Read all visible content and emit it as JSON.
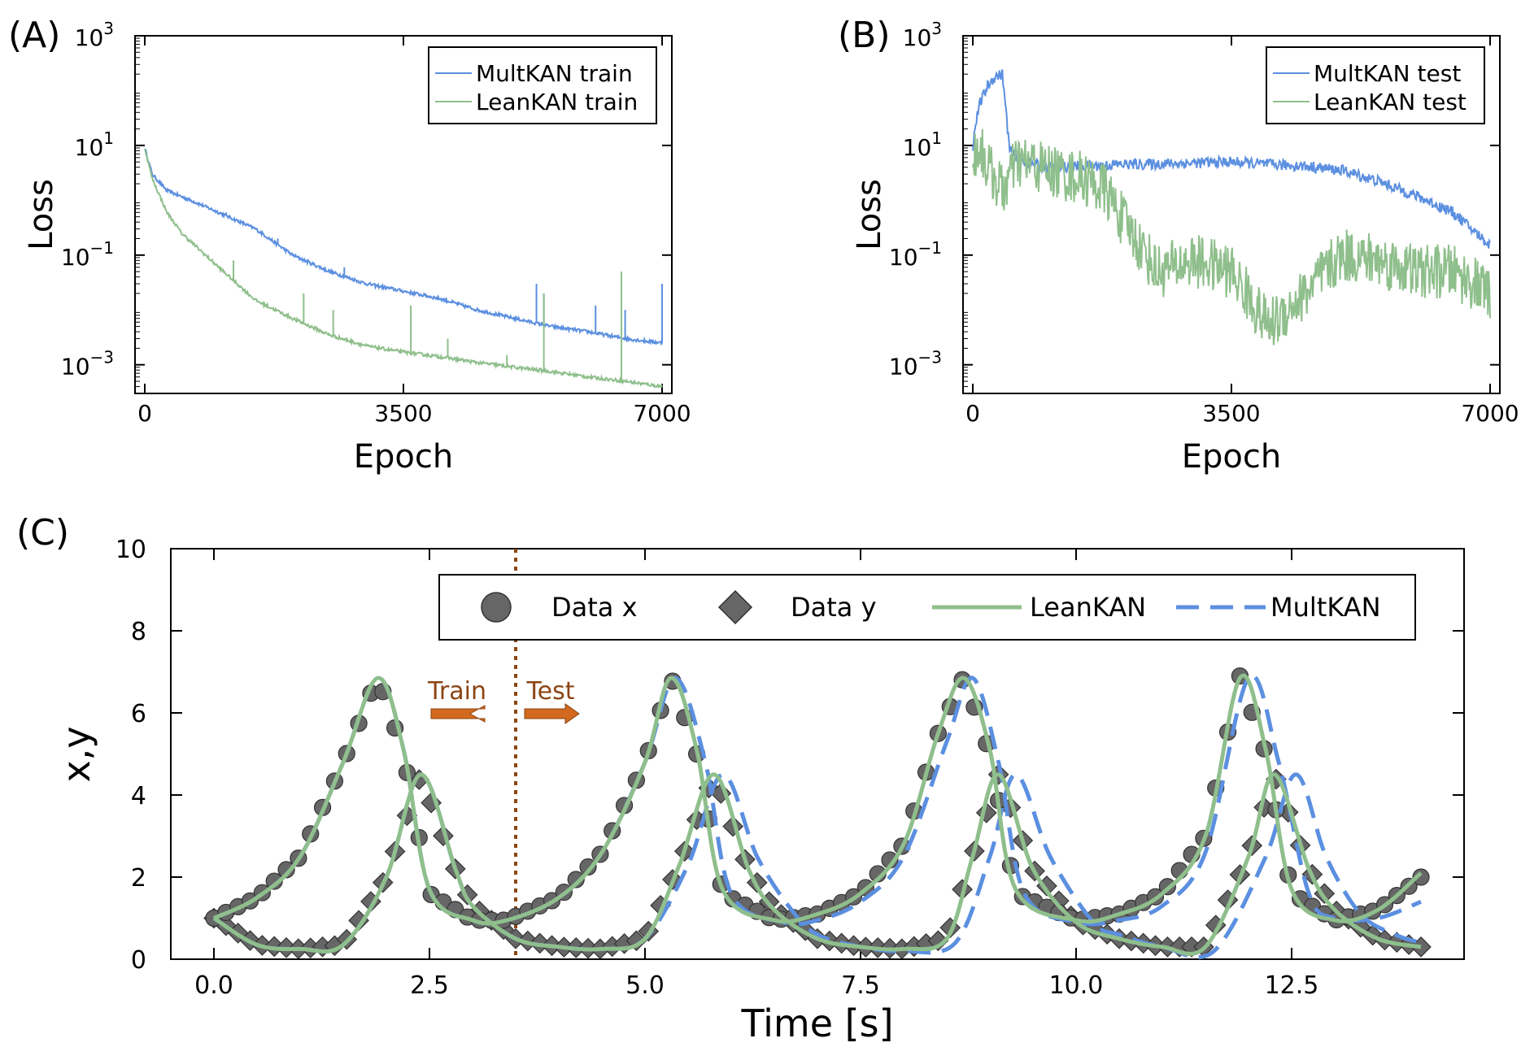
{
  "colors": {
    "multkan": "#5b8fe0",
    "leankan": "#8fbf8c",
    "data": "#666666",
    "split": "#8b4513",
    "arrow": "#d2691e",
    "arrow_text": "#8b4513"
  },
  "panels": {
    "A": {
      "label": "(A)",
      "xlabel": "Epoch",
      "ylabel": "Loss"
    },
    "B": {
      "label": "(B)",
      "xlabel": "Epoch",
      "ylabel": "Loss"
    },
    "C": {
      "label": "(C)",
      "xlabel": "Time [s]",
      "ylabel": "x,y",
      "train_label": "Train",
      "test_label": "Test"
    }
  },
  "chart_data": [
    {
      "type": "line",
      "panel": "A",
      "title": "",
      "xlabel": "Epoch",
      "ylabel": "Loss",
      "yscale": "log",
      "xlim": [
        0,
        7000
      ],
      "ylim": [
        0.0003,
        1000
      ],
      "x_ticks": [
        {
          "value": 0,
          "label": "0"
        },
        {
          "value": 3500,
          "label": "3500"
        },
        {
          "value": 7000,
          "label": "7000"
        }
      ],
      "y_ticks": [
        {
          "exp": -3,
          "label": "10",
          "sup": "−3"
        },
        {
          "exp": -1,
          "label": "10",
          "sup": "−1"
        },
        {
          "exp": 1,
          "label": "10",
          "sup": "1"
        },
        {
          "exp": 3,
          "label": "10",
          "sup": "3"
        }
      ],
      "legend": "top-right",
      "series": [
        {
          "name": "MultKAN train",
          "key": "multkan",
          "x": [
            0,
            100,
            300,
            700,
            1000,
            1500,
            2000,
            2500,
            3000,
            3500,
            4000,
            4500,
            5000,
            5500,
            6000,
            6500,
            7000
          ],
          "y": [
            9,
            3.0,
            1.5,
            0.9,
            0.6,
            0.3,
            0.1,
            0.05,
            0.03,
            0.022,
            0.016,
            0.01,
            0.007,
            0.005,
            0.004,
            0.003,
            0.0025
          ],
          "spikes": [
            {
              "x": 1100,
              "y": 0.6
            },
            {
              "x": 1800,
              "y": 0.2
            },
            {
              "x": 2700,
              "y": 0.06
            },
            {
              "x": 3800,
              "y": 0.02
            },
            {
              "x": 4400,
              "y": 0.012
            },
            {
              "x": 5300,
              "y": 0.03
            },
            {
              "x": 5400,
              "y": 0.02
            },
            {
              "x": 6100,
              "y": 0.012
            },
            {
              "x": 6500,
              "y": 0.01
            },
            {
              "x": 7000,
              "y": 0.03
            }
          ]
        },
        {
          "name": "LeanKAN train",
          "key": "leankan",
          "x": [
            0,
            100,
            300,
            500,
            1000,
            1500,
            2000,
            2500,
            3000,
            3500,
            4000,
            4500,
            5000,
            5500,
            6000,
            6500,
            7000
          ],
          "y": [
            9,
            2.5,
            0.6,
            0.25,
            0.06,
            0.015,
            0.007,
            0.0035,
            0.0022,
            0.0017,
            0.0014,
            0.0011,
            0.0009,
            0.00075,
            0.0006,
            0.0005,
            0.0004
          ],
          "spikes": [
            {
              "x": 1200,
              "y": 0.08
            },
            {
              "x": 2150,
              "y": 0.02
            },
            {
              "x": 2550,
              "y": 0.01
            },
            {
              "x": 3600,
              "y": 0.012
            },
            {
              "x": 4100,
              "y": 0.003
            },
            {
              "x": 4900,
              "y": 0.0015
            },
            {
              "x": 5400,
              "y": 0.02
            },
            {
              "x": 6450,
              "y": 0.05
            }
          ]
        }
      ]
    },
    {
      "type": "line",
      "panel": "B",
      "title": "",
      "xlabel": "Epoch",
      "ylabel": "Loss",
      "yscale": "log",
      "xlim": [
        0,
        7000
      ],
      "ylim": [
        0.0003,
        1000
      ],
      "x_ticks": [
        {
          "value": 0,
          "label": "0"
        },
        {
          "value": 3500,
          "label": "3500"
        },
        {
          "value": 7000,
          "label": "7000"
        }
      ],
      "y_ticks": [
        {
          "exp": -3,
          "label": "10",
          "sup": "−3"
        },
        {
          "exp": -1,
          "label": "10",
          "sup": "−1"
        },
        {
          "exp": 1,
          "label": "10",
          "sup": "1"
        },
        {
          "exp": 3,
          "label": "10",
          "sup": "3"
        }
      ],
      "legend": "top-right",
      "series": [
        {
          "name": "MultKAN test",
          "key": "multkan",
          "x": [
            0,
            50,
            100,
            200,
            300,
            400,
            500,
            700,
            1000,
            1500,
            2000,
            2500,
            3000,
            3500,
            4000,
            4500,
            5000,
            5500,
            6000,
            6500,
            7000
          ],
          "y": [
            10,
            30,
            60,
            120,
            180,
            200,
            8,
            5,
            4,
            4.2,
            4.5,
            4.6,
            4.8,
            5,
            4.5,
            4.2,
            3.5,
            2.2,
            1.2,
            0.6,
            0.15
          ],
          "noise": 0.2
        },
        {
          "name": "LeanKAN test",
          "key": "leankan",
          "x": [
            0,
            100,
            200,
            300,
            400,
            600,
            800,
            1200,
            1500,
            1800,
            2000,
            2200,
            2500,
            3000,
            3500,
            4000,
            4500,
            5000,
            5500,
            6000,
            6500,
            7000
          ],
          "y": [
            6,
            10,
            4,
            2.5,
            1.5,
            5,
            4.5,
            3,
            2.5,
            1.5,
            0.5,
            0.2,
            0.05,
            0.08,
            0.05,
            0.005,
            0.02,
            0.1,
            0.08,
            0.05,
            0.05,
            0.02
          ],
          "noise": 1.0
        }
      ]
    },
    {
      "type": "line+scatter",
      "panel": "C",
      "title": "",
      "xlabel": "Time [s]",
      "ylabel": "x,y",
      "xlim": [
        -0.5,
        14.5
      ],
      "ylim": [
        0,
        10
      ],
      "x_ticks": [
        {
          "value": 0,
          "label": "0.0"
        },
        {
          "value": 2.5,
          "label": "2.5"
        },
        {
          "value": 5,
          "label": "5.0"
        },
        {
          "value": 7.5,
          "label": "7.5"
        },
        {
          "value": 10,
          "label": "10.0"
        },
        {
          "value": 12.5,
          "label": "12.5"
        }
      ],
      "y_ticks": [
        {
          "value": 0,
          "label": "0"
        },
        {
          "value": 2,
          "label": "2"
        },
        {
          "value": 4,
          "label": "4"
        },
        {
          "value": 6,
          "label": "6"
        },
        {
          "value": 8,
          "label": "8"
        },
        {
          "value": 10,
          "label": "10"
        }
      ],
      "train_test_split": 3.5,
      "legend": "top",
      "series": [
        {
          "name": "Data x",
          "key": "data_x",
          "marker": "circle"
        },
        {
          "name": "Data y",
          "key": "data_y",
          "marker": "diamond"
        },
        {
          "name": "LeanKAN",
          "key": "leankan",
          "style": "solid"
        },
        {
          "name": "MultKAN",
          "key": "multkan",
          "style": "dashed"
        }
      ],
      "data_x": {
        "t": [
          0,
          0.5,
          1.0,
          1.5,
          1.9,
          2.2,
          2.5,
          3.0,
          3.4,
          4.0,
          4.5,
          5.0,
          5.3,
          5.6,
          5.9,
          6.5,
          7.0,
          7.5,
          8.0,
          8.4,
          8.7,
          9.0,
          9.3,
          10.0,
          10.5,
          11.0,
          11.5,
          11.9,
          12.2,
          12.5,
          13.0,
          13.5,
          14.0
        ],
        "v": [
          1.0,
          1.5,
          2.5,
          4.8,
          6.9,
          5.0,
          1.6,
          0.95,
          0.95,
          1.5,
          2.6,
          4.8,
          6.9,
          5.0,
          1.6,
          0.95,
          1.1,
          1.6,
          2.8,
          5.5,
          6.9,
          5.0,
          1.6,
          0.95,
          1.1,
          1.6,
          3.0,
          6.9,
          5.0,
          1.6,
          0.95,
          1.2,
          2.0
        ]
      },
      "data_y": {
        "t": [
          0,
          0.5,
          1.0,
          1.5,
          2.0,
          2.4,
          2.8,
          3.0,
          3.5,
          4.0,
          4.5,
          5.0,
          5.4,
          5.8,
          6.2,
          6.5,
          7.0,
          7.5,
          8.0,
          8.5,
          8.8,
          9.1,
          9.5,
          10.0,
          10.5,
          11.0,
          11.5,
          12.0,
          12.3,
          12.7,
          13.0,
          13.5,
          14.0
        ],
        "v": [
          1.0,
          0.35,
          0.25,
          0.35,
          2.0,
          4.5,
          2.2,
          1.3,
          0.5,
          0.3,
          0.25,
          0.5,
          2.3,
          4.5,
          2.2,
          1.2,
          0.5,
          0.3,
          0.25,
          0.5,
          2.5,
          4.5,
          2.2,
          0.9,
          0.5,
          0.3,
          0.3,
          2.5,
          4.5,
          2.2,
          1.2,
          0.5,
          0.3
        ]
      },
      "leankan_x": {
        "t": [
          0,
          0.5,
          1.0,
          1.5,
          1.9,
          2.2,
          2.5,
          3.0,
          3.4,
          4.0,
          4.5,
          5.0,
          5.3,
          5.6,
          5.9,
          6.5,
          7.0,
          7.5,
          8.0,
          8.4,
          8.7,
          9.0,
          9.3,
          10.0,
          10.5,
          11.0,
          11.5,
          11.9,
          12.2,
          12.5,
          13.0,
          13.5,
          14.0
        ],
        "v": [
          1.0,
          1.5,
          2.5,
          4.8,
          6.85,
          5.1,
          1.7,
          0.95,
          0.95,
          1.5,
          2.6,
          4.8,
          6.85,
          5.1,
          1.7,
          0.95,
          1.1,
          1.6,
          2.8,
          5.5,
          6.85,
          5.1,
          1.7,
          0.95,
          1.1,
          1.6,
          3.0,
          6.85,
          5.1,
          1.7,
          0.95,
          1.2,
          2.1
        ]
      },
      "leankan_y": {
        "t": [
          0,
          0.5,
          1.0,
          1.5,
          2.0,
          2.4,
          2.8,
          3.0,
          3.5,
          4.0,
          4.5,
          5.0,
          5.4,
          5.8,
          6.2,
          6.5,
          7.0,
          7.5,
          8.0,
          8.5,
          8.8,
          9.1,
          9.5,
          10.0,
          10.5,
          11.0,
          11.5,
          12.0,
          12.3,
          12.7,
          13.0,
          13.5,
          14.0
        ],
        "v": [
          1.0,
          0.35,
          0.25,
          0.35,
          2.0,
          4.5,
          2.2,
          1.3,
          0.5,
          0.3,
          0.25,
          0.5,
          2.3,
          4.5,
          2.2,
          1.2,
          0.5,
          0.3,
          0.25,
          0.5,
          2.5,
          4.5,
          2.2,
          0.9,
          0.5,
          0.3,
          0.3,
          2.5,
          4.5,
          2.2,
          1.2,
          0.5,
          0.3
        ]
      },
      "multkan_x": {
        "t": [
          0,
          0.5,
          1.0,
          1.5,
          1.9,
          2.2,
          2.5,
          3.0,
          3.4,
          4.0,
          4.5,
          5.0,
          5.35,
          5.7,
          6.0,
          6.6,
          7.0,
          7.5,
          8.0,
          8.5,
          8.8,
          9.1,
          9.4,
          10.0,
          10.5,
          11.0,
          11.5,
          12.0,
          12.35,
          12.7,
          13.0,
          13.5,
          14.0
        ],
        "v": [
          1.0,
          1.5,
          2.5,
          4.8,
          6.85,
          5.1,
          1.7,
          0.95,
          0.95,
          1.5,
          2.6,
          4.8,
          6.85,
          4.8,
          1.6,
          0.9,
          0.95,
          1.4,
          2.5,
          5.3,
          6.85,
          4.8,
          1.6,
          0.9,
          0.95,
          1.3,
          2.6,
          6.85,
          4.8,
          1.6,
          1.0,
          1.0,
          1.4
        ]
      },
      "multkan_y": {
        "t": [
          0,
          0.5,
          1.0,
          1.5,
          2.0,
          2.4,
          2.8,
          3.0,
          3.5,
          4.0,
          4.5,
          5.0,
          5.5,
          5.9,
          6.3,
          6.7,
          7.0,
          7.5,
          8.0,
          8.6,
          9.0,
          9.3,
          9.7,
          10.2,
          10.5,
          11.0,
          11.6,
          12.2,
          12.55,
          12.9,
          13.3,
          13.7,
          14.0
        ],
        "v": [
          1.0,
          0.35,
          0.25,
          0.35,
          2.0,
          4.5,
          2.2,
          1.3,
          0.5,
          0.3,
          0.25,
          0.5,
          2.3,
          4.5,
          2.5,
          1.2,
          0.6,
          0.3,
          0.2,
          0.4,
          2.5,
          4.5,
          2.5,
          0.9,
          0.6,
          0.3,
          0.2,
          2.5,
          4.5,
          2.5,
          1.1,
          0.6,
          0.4
        ]
      }
    }
  ]
}
